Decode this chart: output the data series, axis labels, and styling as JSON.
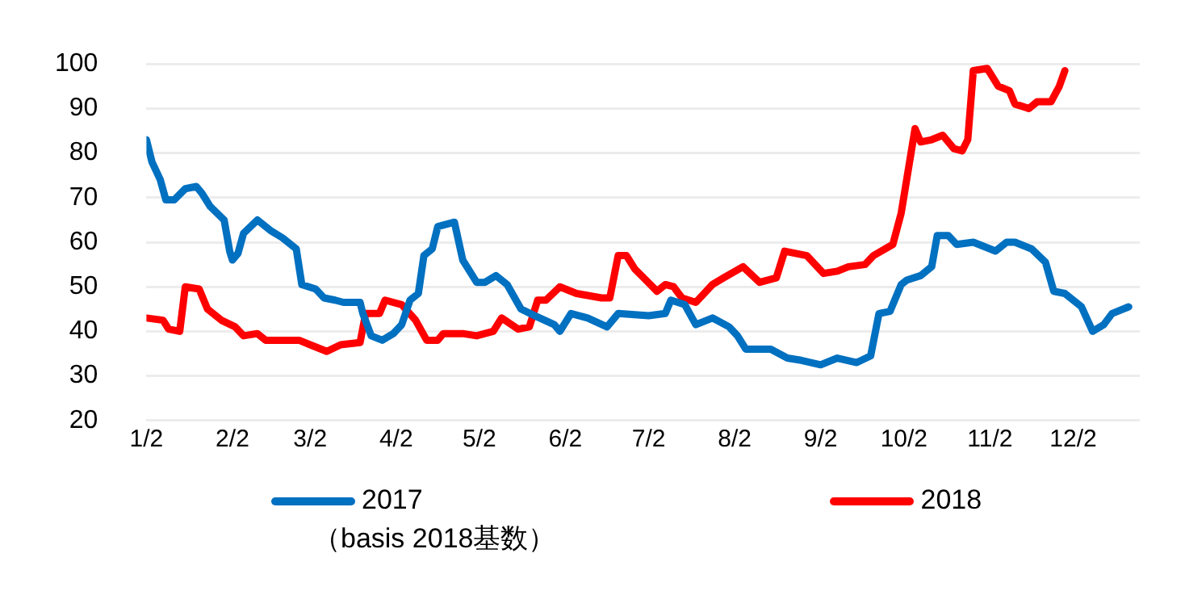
{
  "chart_data": {
    "type": "line",
    "xlim": [
      "--01-02",
      "--12-26"
    ],
    "xticks": [
      {
        "value": "--01-02",
        "label": "1/2"
      },
      {
        "value": "--02-02",
        "label": "2/2"
      },
      {
        "value": "--03-02",
        "label": "3/2"
      },
      {
        "value": "--04-02",
        "label": "4/2"
      },
      {
        "value": "--05-02",
        "label": "5/2"
      },
      {
        "value": "--06-02",
        "label": "6/2"
      },
      {
        "value": "--07-02",
        "label": "7/2"
      },
      {
        "value": "--08-02",
        "label": "8/2"
      },
      {
        "value": "--09-02",
        "label": "9/2"
      },
      {
        "value": "--10-02",
        "label": "10/2"
      },
      {
        "value": "--11-02",
        "label": "11/2"
      },
      {
        "value": "--12-02",
        "label": "12/2"
      }
    ],
    "ylim": [
      20,
      100
    ],
    "yticks": [
      20,
      30,
      40,
      50,
      60,
      70,
      80,
      90,
      100
    ],
    "grid": "y",
    "legend": "bottom",
    "marker": "none",
    "line_style": "solid",
    "annotations": [
      "（basis 2018基数）"
    ],
    "series": [
      {
        "name": "2017",
        "color": "#0070c0",
        "x": [
          "--01-02",
          "--01-04",
          "--01-07",
          "--01-09",
          "--01-12",
          "--01-16",
          "--01-20",
          "--01-22",
          "--01-25",
          "--01-30",
          "--02-01",
          "--02-02",
          "--02-04",
          "--02-06",
          "--02-11",
          "--02-16",
          "--02-20",
          "--02-25",
          "--02-27",
          "--03-04",
          "--03-07",
          "--03-11",
          "--03-14",
          "--03-20",
          "--03-21",
          "--03-24",
          "--03-28",
          "--04-01",
          "--04-04",
          "--04-07",
          "--04-10",
          "--04-12",
          "--04-15",
          "--04-17",
          "--04-23",
          "--04-26",
          "--05-01",
          "--05-04",
          "--05-08",
          "--05-12",
          "--05-17",
          "--05-22",
          "--05-29",
          "--05-31",
          "--06-04",
          "--06-10",
          "--06-17",
          "--06-21",
          "--07-02",
          "--07-08",
          "--07-10",
          "--07-15",
          "--07-19",
          "--07-25",
          "--07-31",
          "--08-03",
          "--08-06",
          "--08-15",
          "--08-21",
          "--08-26",
          "--09-02",
          "--09-08",
          "--09-15",
          "--09-20",
          "--09-23",
          "--09-27",
          "--10-01",
          "--10-03",
          "--10-08",
          "--10-12",
          "--10-14",
          "--10-18",
          "--10-21",
          "--10-27",
          "--11-04",
          "--11-08",
          "--11-11",
          "--11-17",
          "--11-22",
          "--11-25",
          "--11-29",
          "--12-05",
          "--12-09",
          "--12-13",
          "--12-16",
          "--12-22"
        ],
        "values": [
          83,
          78,
          74,
          69.5,
          69.5,
          72,
          72.5,
          71,
          68,
          65,
          58,
          56,
          57.5,
          62,
          65,
          62.5,
          61,
          58.5,
          50.5,
          49.5,
          47.5,
          47,
          46.5,
          46.5,
          44,
          39,
          38,
          39.5,
          41.5,
          47,
          48.5,
          57,
          58.5,
          63.5,
          64.5,
          56,
          51,
          51,
          52.5,
          50.5,
          45,
          43.5,
          41.5,
          40,
          44,
          43,
          41,
          44,
          43.5,
          44,
          47,
          46,
          41.5,
          43,
          41,
          39,
          36,
          36,
          34,
          33.5,
          32.5,
          34,
          33,
          34.5,
          44,
          44.5,
          50.5,
          51.5,
          52.5,
          54.5,
          61.5,
          61.5,
          59.5,
          60,
          58,
          60,
          60,
          58.5,
          55.5,
          49,
          48.5,
          45.5,
          40,
          41.5,
          44,
          45.5
        ]
      },
      {
        "name": "2018",
        "color": "#ff0000",
        "x": [
          "--01-02",
          "--01-08",
          "--01-10",
          "--01-14",
          "--01-16",
          "--01-21",
          "--01-24",
          "--01-29",
          "--02-03",
          "--02-06",
          "--02-11",
          "--02-14",
          "--02-26",
          "--03-02",
          "--03-08",
          "--03-13",
          "--03-20",
          "--03-22",
          "--03-27",
          "--03-29",
          "--04-04",
          "--04-09",
          "--04-13",
          "--04-17",
          "--04-19",
          "--04-26",
          "--05-01",
          "--05-07",
          "--05-10",
          "--05-16",
          "--05-20",
          "--05-23",
          "--05-26",
          "--05-31",
          "--06-06",
          "--06-15",
          "--06-18",
          "--06-21",
          "--06-24",
          "--06-27",
          "--07-01",
          "--07-05",
          "--07-08",
          "--07-11",
          "--07-14",
          "--07-19",
          "--07-25",
          "--07-29",
          "--08-05",
          "--08-11",
          "--08-17",
          "--08-20",
          "--08-28",
          "--09-03",
          "--09-08",
          "--09-12",
          "--09-18",
          "--09-21",
          "--09-28",
          "--10-01",
          "--10-06",
          "--10-08",
          "--10-12",
          "--10-16",
          "--10-20",
          "--10-23",
          "--10-25",
          "--10-27",
          "--11-01",
          "--11-05",
          "--11-09",
          "--11-11",
          "--11-16",
          "--11-19",
          "--11-24",
          "--11-27",
          "--11-29"
        ],
        "values": [
          43,
          42.5,
          40.5,
          40,
          50,
          49.5,
          45,
          42.5,
          41,
          39,
          39.5,
          38,
          38,
          37,
          35.5,
          37,
          37.5,
          44,
          44,
          47,
          46,
          42.5,
          38,
          38,
          39.5,
          39.5,
          39,
          40,
          43,
          40.5,
          41,
          47,
          47,
          50,
          48.5,
          47.5,
          47.5,
          57,
          57,
          54,
          51.5,
          49,
          50.5,
          50,
          47.5,
          46.5,
          50.5,
          52,
          54.5,
          51,
          52,
          58,
          57,
          53,
          53.5,
          54.5,
          55,
          57,
          59.5,
          66.5,
          85.5,
          82.5,
          83,
          84,
          81,
          80.5,
          83,
          98.5,
          99,
          95,
          94,
          91,
          90,
          91.5,
          91.5,
          95,
          98.5
        ]
      }
    ]
  }
}
